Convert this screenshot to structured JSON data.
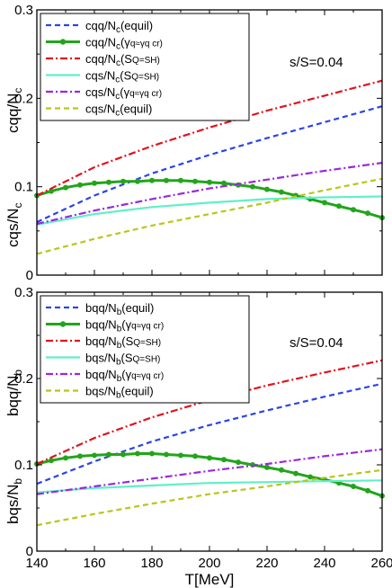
{
  "chart_data": [
    {
      "type": "line",
      "annotation": "s/S=0.04",
      "ylabels": [
        "cqq/N",
        "cqs/N"
      ],
      "ylim": [
        0,
        0.3
      ],
      "xlim": [
        140,
        260
      ],
      "yticks": [
        "0",
        "0.1",
        "0.2",
        "0.3"
      ],
      "xticks": [],
      "legend_position": "top-left",
      "legend": [
        "cqq/N",
        "cqq/N",
        "cqq/N",
        "cqs/N",
        "cqs/N",
        "cqs/N"
      ],
      "series": [
        {
          "name": "cqq/Nc(equil)",
          "color": "#2a45e8",
          "dash": "6,4",
          "markers": false,
          "x": [
            140,
            160,
            180,
            200,
            220,
            240,
            260
          ],
          "y": [
            0.06,
            0.09,
            0.115,
            0.136,
            0.155,
            0.173,
            0.191
          ]
        },
        {
          "name": "cqq/Nc(γq≈γq cr)",
          "color": "#22a51b",
          "dash": "",
          "markers": true,
          "x": [
            140,
            145,
            150,
            155,
            160,
            165,
            170,
            175,
            180,
            185,
            190,
            195,
            200,
            205,
            210,
            215,
            220,
            225,
            230,
            235,
            240,
            245,
            250,
            255,
            260
          ],
          "y": [
            0.09,
            0.095,
            0.099,
            0.102,
            0.104,
            0.105,
            0.106,
            0.106,
            0.107,
            0.107,
            0.107,
            0.106,
            0.105,
            0.104,
            0.102,
            0.1,
            0.097,
            0.094,
            0.09,
            0.086,
            0.082,
            0.078,
            0.074,
            0.07,
            0.065
          ]
        },
        {
          "name": "cqq/Nc(SQ=SH)",
          "color": "#e0141e",
          "dash": "8,3,2,3",
          "markers": false,
          "x": [
            140,
            160,
            180,
            200,
            220,
            240,
            260
          ],
          "y": [
            0.09,
            0.122,
            0.146,
            0.167,
            0.186,
            0.203,
            0.22
          ]
        },
        {
          "name": "cqs/Nc(SQ=SH)",
          "color": "#5ff0c8",
          "dash": "",
          "markers": false,
          "x": [
            140,
            160,
            180,
            200,
            220,
            240,
            260
          ],
          "y": [
            0.057,
            0.069,
            0.077,
            0.082,
            0.086,
            0.088,
            0.089
          ]
        },
        {
          "name": "cqs/Nc(γq≈γq cr)",
          "color": "#9b27e0",
          "dash": "8,3,2,3",
          "markers": false,
          "x": [
            140,
            160,
            180,
            200,
            220,
            240,
            260
          ],
          "y": [
            0.058,
            0.073,
            0.086,
            0.098,
            0.108,
            0.118,
            0.127
          ]
        },
        {
          "name": "cqs/Nc(equil)",
          "color": "#bcc518",
          "dash": "6,4",
          "markers": false,
          "x": [
            140,
            160,
            180,
            200,
            220,
            240,
            260
          ],
          "y": [
            0.024,
            0.041,
            0.056,
            0.069,
            0.082,
            0.096,
            0.109
          ]
        }
      ]
    },
    {
      "type": "line",
      "annotation": "s/S=0.04",
      "ylabels": [
        "bqq/N",
        "bqs/N"
      ],
      "ylim": [
        0,
        0.3
      ],
      "xlim": [
        140,
        260
      ],
      "yticks": [
        "0",
        "0.1",
        "0.2",
        "0.3"
      ],
      "xticks": [
        "140",
        "160",
        "180",
        "200",
        "220",
        "240",
        "260"
      ],
      "xlabel": "T[MeV]",
      "legend_position": "top-left",
      "legend": [
        "bqq/N",
        "bqq/N",
        "bqq/N",
        "bqs/N",
        "bqq/N",
        "bqs/N"
      ],
      "series": [
        {
          "name": "bqq/Nb(equil)",
          "color": "#2a45e8",
          "dash": "6,4",
          "markers": false,
          "x": [
            140,
            160,
            180,
            200,
            220,
            240,
            260
          ],
          "y": [
            0.078,
            0.104,
            0.127,
            0.146,
            0.163,
            0.179,
            0.194
          ]
        },
        {
          "name": "bqq/Nb(γq≈γq cr)",
          "color": "#22a51b",
          "dash": "",
          "markers": true,
          "x": [
            140,
            145,
            150,
            155,
            160,
            165,
            170,
            175,
            180,
            185,
            190,
            195,
            200,
            205,
            210,
            215,
            220,
            225,
            230,
            235,
            240,
            245,
            250,
            255,
            260
          ],
          "y": [
            0.101,
            0.105,
            0.108,
            0.11,
            0.111,
            0.112,
            0.112,
            0.113,
            0.113,
            0.112,
            0.111,
            0.11,
            0.108,
            0.106,
            0.103,
            0.1,
            0.097,
            0.094,
            0.09,
            0.086,
            0.083,
            0.079,
            0.075,
            0.07,
            0.064
          ]
        },
        {
          "name": "bqq/Nb(SQ=SH)",
          "color": "#e0141e",
          "dash": "8,3,2,3",
          "markers": false,
          "x": [
            140,
            160,
            180,
            200,
            220,
            240,
            260
          ],
          "y": [
            0.101,
            0.131,
            0.155,
            0.175,
            0.192,
            0.207,
            0.221
          ]
        },
        {
          "name": "bqs/Nb(SQ=SH)",
          "color": "#5ff0c8",
          "dash": "",
          "markers": false,
          "x": [
            140,
            160,
            180,
            200,
            220,
            240,
            260
          ],
          "y": [
            0.068,
            0.073,
            0.076,
            0.079,
            0.08,
            0.081,
            0.082
          ]
        },
        {
          "name": "bqq/Nb(γq≈γq cr)",
          "color": "#9b27e0",
          "dash": "8,3,2,3",
          "markers": false,
          "x": [
            140,
            160,
            180,
            200,
            220,
            240,
            260
          ],
          "y": [
            0.066,
            0.075,
            0.084,
            0.093,
            0.101,
            0.11,
            0.118
          ]
        },
        {
          "name": "bqs/Nb(equil)",
          "color": "#bcc518",
          "dash": "6,4",
          "markers": false,
          "x": [
            140,
            160,
            180,
            200,
            220,
            240,
            260
          ],
          "y": [
            0.03,
            0.043,
            0.055,
            0.066,
            0.075,
            0.085,
            0.094
          ]
        }
      ]
    }
  ]
}
